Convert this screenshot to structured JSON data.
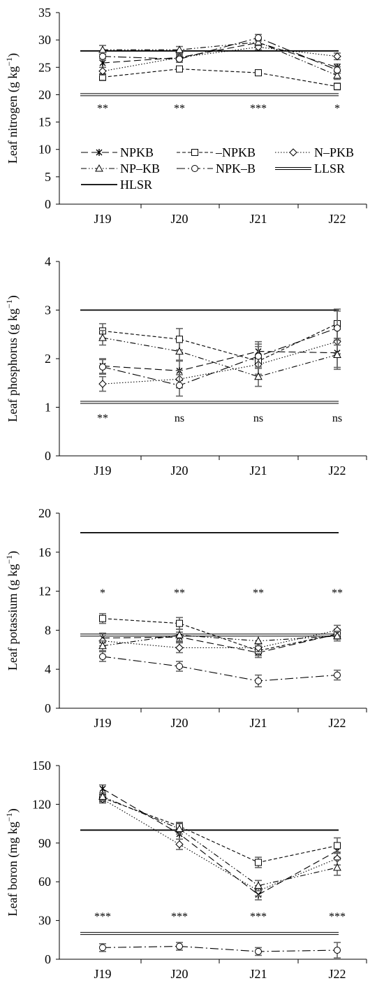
{
  "chart_data": [
    {
      "type": "line",
      "ylabel": "Leaf nitrogen (g kg",
      "ylabel_sup": "−1",
      "ylabel_close": ")",
      "categories": [
        "J19",
        "J20",
        "J21",
        "J22"
      ],
      "ylim": [
        0,
        35
      ],
      "yticks": [
        "0",
        "5",
        "10",
        "15",
        "20",
        "25",
        "30",
        "35"
      ],
      "significance": [
        "**",
        "**",
        "***",
        "*"
      ],
      "series": [
        {
          "name": "NPKB",
          "values": [
            25.8,
            26.8,
            29.5,
            25.0
          ],
          "err": [
            0.8,
            0.6,
            0.6,
            0.6
          ]
        },
        {
          "name": "–NPKB",
          "values": [
            23.2,
            24.7,
            24.0,
            21.5
          ],
          "err": [
            0.6,
            0.5,
            0.5,
            0.6
          ]
        },
        {
          "name": "N–PKB",
          "values": [
            24.3,
            26.8,
            28.7,
            27.0
          ],
          "err": [
            0.7,
            0.6,
            0.5,
            0.6
          ]
        },
        {
          "name": "NP–KB",
          "values": [
            28.2,
            28.2,
            29.6,
            23.5
          ],
          "err": [
            0.8,
            0.6,
            0.6,
            0.7
          ]
        },
        {
          "name": "NPK–B",
          "values": [
            27.0,
            26.5,
            30.4,
            24.5
          ],
          "err": [
            0.7,
            0.6,
            0.6,
            0.6
          ]
        }
      ],
      "ref_lines": [
        {
          "name": "LLSR",
          "value": 20
        },
        {
          "name": "HLSR",
          "value": 28
        }
      ]
    },
    {
      "type": "line",
      "ylabel": "Leaf phosphorus (g kg",
      "ylabel_sup": "−1",
      "ylabel_close": ")",
      "categories": [
        "J19",
        "J20",
        "J21",
        "J22"
      ],
      "ylim": [
        0,
        4
      ],
      "yticks": [
        "0",
        "1",
        "2",
        "3",
        "4"
      ],
      "significance": [
        "**",
        "ns",
        "ns",
        "ns"
      ],
      "series": [
        {
          "name": "NPKB",
          "values": [
            1.85,
            1.75,
            2.15,
            2.12
          ],
          "err": [
            0.15,
            0.2,
            0.2,
            0.3
          ]
        },
        {
          "name": "–NPKB",
          "values": [
            2.57,
            2.4,
            1.95,
            2.72
          ],
          "err": [
            0.15,
            0.22,
            0.3,
            0.3
          ]
        },
        {
          "name": "N–PKB",
          "values": [
            1.48,
            1.58,
            1.88,
            2.35
          ],
          "err": [
            0.15,
            0.18,
            0.2,
            0.25
          ]
        },
        {
          "name": "NP–KB",
          "values": [
            2.43,
            2.15,
            1.63,
            2.08
          ],
          "err": [
            0.15,
            0.18,
            0.2,
            0.3
          ]
        },
        {
          "name": "NPK–B",
          "values": [
            1.83,
            1.45,
            2.05,
            2.63
          ],
          "err": [
            0.15,
            0.22,
            0.25,
            0.35
          ]
        }
      ],
      "ref_lines": [
        {
          "name": "LLSR",
          "value": 1.1
        },
        {
          "name": "HLSR",
          "value": 3.0
        }
      ]
    },
    {
      "type": "line",
      "ylabel": "Leaf potassium (g kg",
      "ylabel_sup": "−1",
      "ylabel_close": ")",
      "categories": [
        "J19",
        "J20",
        "J21",
        "J22"
      ],
      "ylim": [
        0,
        20
      ],
      "yticks": [
        "0",
        "4",
        "8",
        "12",
        "16",
        "20"
      ],
      "significance": [
        "*",
        "**",
        "**",
        "**"
      ],
      "series": [
        {
          "name": "NPKB",
          "values": [
            7.2,
            7.3,
            5.7,
            7.6
          ],
          "err": [
            0.5,
            0.5,
            0.5,
            0.5
          ]
        },
        {
          "name": "–NPKB",
          "values": [
            9.2,
            8.7,
            5.9,
            7.6
          ],
          "err": [
            0.5,
            0.6,
            0.5,
            0.5
          ]
        },
        {
          "name": "N–PKB",
          "values": [
            6.9,
            6.2,
            6.2,
            8.0
          ],
          "err": [
            0.5,
            0.5,
            0.4,
            0.5
          ]
        },
        {
          "name": "NP–KB",
          "values": [
            6.4,
            7.5,
            6.9,
            7.4
          ],
          "err": [
            0.5,
            0.6,
            0.5,
            0.5
          ]
        },
        {
          "name": "NPK–B",
          "values": [
            5.3,
            4.3,
            2.8,
            3.4
          ],
          "err": [
            0.5,
            0.5,
            0.6,
            0.5
          ]
        }
      ],
      "ref_lines": [
        {
          "name": "LLSR",
          "value": 7.5
        },
        {
          "name": "HLSR",
          "value": 18
        }
      ]
    },
    {
      "type": "line",
      "ylabel": "Leaf boron (mg kg",
      "ylabel_sup": "−1",
      "ylabel_close": ")",
      "categories": [
        "J19",
        "J20",
        "J21",
        "J22"
      ],
      "ylim": [
        0,
        150
      ],
      "yticks": [
        "0",
        "30",
        "60",
        "90",
        "120",
        "150"
      ],
      "significance": [
        "***",
        "***",
        "***",
        "***"
      ],
      "series": [
        {
          "name": "NPKB",
          "values": [
            132,
            97,
            50,
            84
          ],
          "err": [
            3,
            4,
            4,
            5
          ]
        },
        {
          "name": "–NPKB",
          "values": [
            125,
            103,
            75,
            88
          ],
          "err": [
            3,
            3,
            4,
            6
          ]
        },
        {
          "name": "N–PKB",
          "values": [
            124,
            89,
            53,
            78
          ],
          "err": [
            3,
            4,
            4,
            5
          ]
        },
        {
          "name": "NP–KB",
          "values": [
            126,
            101,
            57,
            71
          ],
          "err": [
            3,
            4,
            4,
            6
          ]
        },
        {
          "name": "NPK–B",
          "values": [
            9,
            10,
            6,
            7
          ],
          "err": [
            3,
            3,
            3,
            6
          ]
        }
      ],
      "ref_lines": [
        {
          "name": "LLSR",
          "value": 20
        },
        {
          "name": "HLSR",
          "value": 100
        }
      ]
    }
  ],
  "legend": {
    "entries": [
      "NPKB",
      "–NPKB",
      "N–PKB",
      "NP–KB",
      "NPK–B",
      "LLSR",
      "HLSR"
    ]
  }
}
